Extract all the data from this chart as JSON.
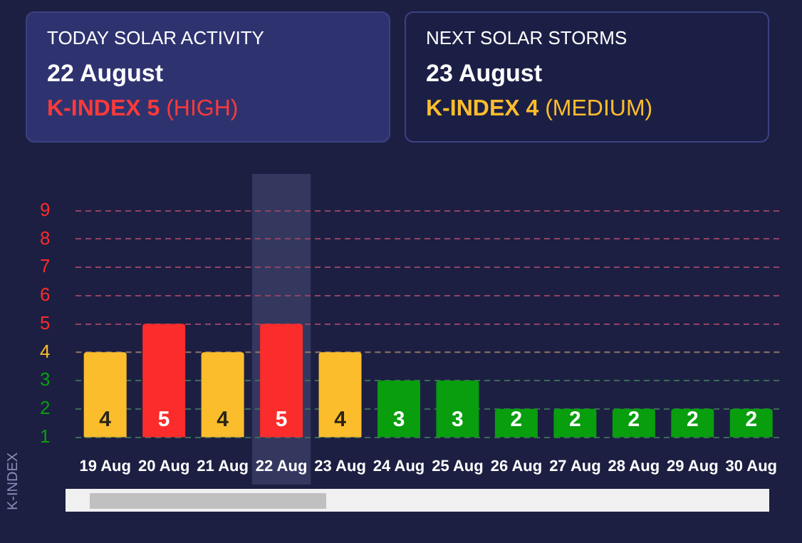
{
  "chart_data": {
    "type": "bar",
    "annotations": [
      "TODAY SOLAR ACTIVITY",
      "22 August",
      "K-INDEX 5 (HIGH)",
      "NEXT SOLAR STORMS",
      "23 August",
      "K-INDEX 4 (MEDIUM)"
    ],
    "ylabel": "K-INDEX",
    "categories": [
      "19 Aug",
      "20 Aug",
      "21 Aug",
      "22 Aug",
      "23 Aug",
      "24 Aug",
      "25 Aug",
      "26 Aug",
      "27 Aug",
      "28 Aug",
      "29 Aug",
      "30 Aug"
    ],
    "values": [
      4,
      5,
      4,
      5,
      4,
      3,
      3,
      2,
      2,
      2,
      2,
      2
    ],
    "colors": [
      "#fbbd2c",
      "#fb2c2c",
      "#fbbd2c",
      "#fb2c2c",
      "#fbbd2c",
      "#089e0e",
      "#089e0e",
      "#089e0e",
      "#089e0e",
      "#089e0e",
      "#089e0e",
      "#089e0e"
    ],
    "data_labels": true,
    "ylim": [
      1,
      9
    ],
    "yticks": [
      1,
      2,
      3,
      4,
      5,
      6,
      7,
      8,
      9
    ],
    "ref_lines": [
      {
        "axis": "y",
        "value": 4,
        "color": "#927664",
        "line_style": "dashed"
      }
    ],
    "grid": "y",
    "line_style": "dashed",
    "legend": false,
    "bands": [
      {
        "axis": "x",
        "from": "22 Aug",
        "to": "22 Aug",
        "color": "#34385f"
      }
    ]
  }
}
